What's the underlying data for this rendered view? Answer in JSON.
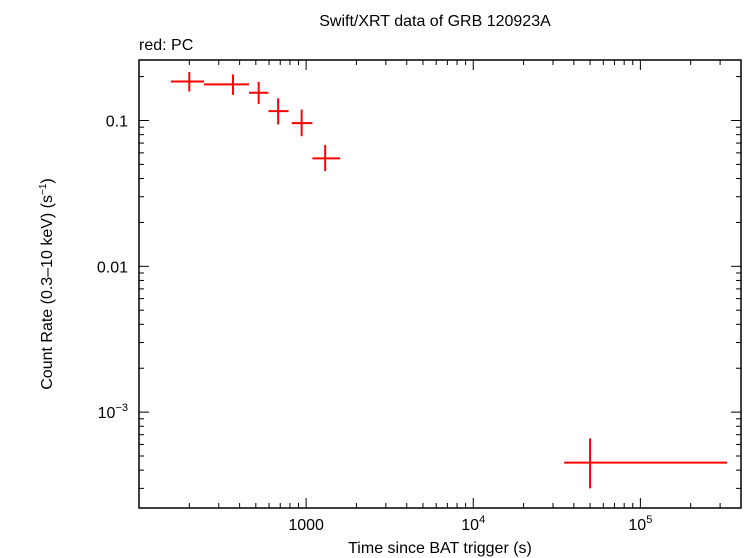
{
  "chart_data": {
    "type": "scatter",
    "title": "Swift/XRT data of GRB 120923A",
    "subtitle": "red: PC",
    "xlabel": "Time since BAT trigger (s)",
    "ylabel_main": "Count Rate (0.3–10 keV) (s",
    "ylabel_sup": "−1",
    "ylabel_end": ")",
    "x_scale": "log",
    "y_scale": "log",
    "xlim": [
      100,
      400000
    ],
    "ylim": [
      0.00022,
      0.26
    ],
    "x_ticks": [
      {
        "value": 1000,
        "base": "1000",
        "sup": ""
      },
      {
        "value": 10000,
        "base": "10",
        "sup": "4"
      },
      {
        "value": 100000,
        "base": "10",
        "sup": "5"
      }
    ],
    "y_ticks": [
      {
        "value": 0.1,
        "base": "0.1",
        "sup": ""
      },
      {
        "value": 0.01,
        "base": "0.01",
        "sup": ""
      },
      {
        "value": 0.001,
        "base": "10",
        "sup": "−3"
      }
    ],
    "grid": false,
    "series": [
      {
        "color": "#ff0000",
        "points": [
          {
            "x": 200,
            "xlo": 155,
            "xhi": 245,
            "y": 0.185,
            "ylo": 0.158,
            "yhi": 0.215
          },
          {
            "x": 365,
            "xlo": 245,
            "xhi": 455,
            "y": 0.177,
            "ylo": 0.15,
            "yhi": 0.207
          },
          {
            "x": 520,
            "xlo": 455,
            "xhi": 595,
            "y": 0.155,
            "ylo": 0.13,
            "yhi": 0.184
          },
          {
            "x": 680,
            "xlo": 595,
            "xhi": 785,
            "y": 0.116,
            "ylo": 0.094,
            "yhi": 0.142
          },
          {
            "x": 940,
            "xlo": 820,
            "xhi": 1090,
            "y": 0.096,
            "ylo": 0.078,
            "yhi": 0.119
          },
          {
            "x": 1300,
            "xlo": 1090,
            "xhi": 1600,
            "y": 0.055,
            "ylo": 0.045,
            "yhi": 0.068
          },
          {
            "x": 50000,
            "xlo": 35000,
            "xhi": 330000,
            "y": 0.00045,
            "ylo": 0.0003,
            "yhi": 0.00066
          }
        ]
      }
    ]
  }
}
